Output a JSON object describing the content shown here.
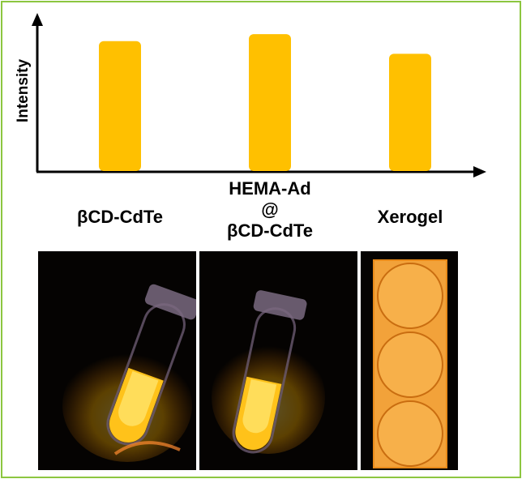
{
  "chart_data": {
    "type": "bar",
    "categories": [
      "βCD-CdTe",
      "HEMA-Ad @ βCD-CdTe",
      "Xerogel"
    ],
    "category_lines": [
      [
        "βCD-CdTe"
      ],
      [
        "HEMA-Ad",
        "@",
        "βCD-CdTe"
      ],
      [
        "Xerogel"
      ]
    ],
    "values": [
      0.93,
      0.98,
      0.84
    ],
    "ylim": [
      0,
      1.05
    ],
    "title": "",
    "xlabel": "",
    "ylabel": "Intensity",
    "grid": false,
    "legend": "none",
    "bar_color": "#ffc000"
  },
  "photos": [
    {
      "subject": "test-tube",
      "glow": "#ffb300"
    },
    {
      "subject": "test-tube",
      "glow": "#ffb300"
    },
    {
      "subject": "xerogel-wells",
      "glow": "#e88a1a"
    }
  ],
  "colors": {
    "frame": "#8cc63f",
    "axis": "#000000"
  }
}
